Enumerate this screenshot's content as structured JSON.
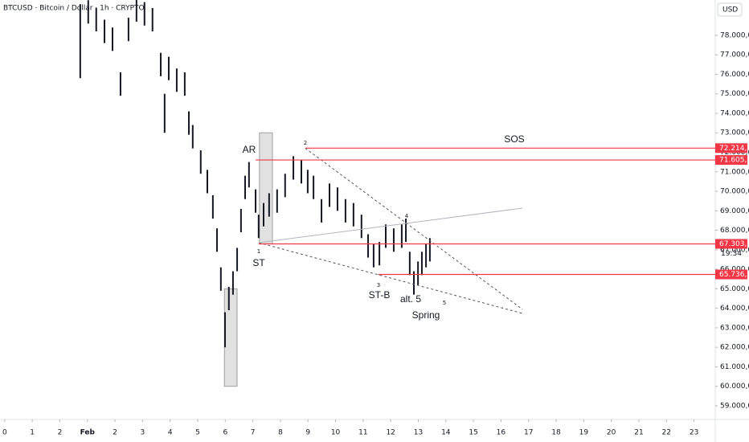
{
  "chart_data": {
    "type": "range-bar",
    "title": "BTCUSD · Bitcoin / Dollar · 1h · CRYPTO",
    "currency": "USD",
    "countdown": "19:34",
    "color": "#131722",
    "x": [
      2.74,
      3.03,
      3.32,
      3.62,
      3.91,
      4.2,
      4.49,
      4.78,
      5.07,
      5.36,
      5.66,
      5.8,
      5.95,
      6.24,
      6.53,
      6.68,
      6.82,
      7.11,
      7.35,
      7.55,
      7.7,
      7.84,
      7.99,
      8.13,
      8.28,
      8.43,
      8.57,
      8.72,
      8.86,
      9.1,
      9.21,
      9.39,
      9.59,
      9.88,
      10.17,
      10.47,
      10.76,
      10.99,
      11.2,
      11.49,
      11.78,
      12.07,
      12.36,
      12.65,
      12.94,
      13.18,
      13.38,
      13.59,
      13.82,
      14.11,
      14.4,
      14.55,
      14.69,
      14.84,
      14.99,
      15.13,
      15.28,
      15.42
    ],
    "series": [
      {
        "name": "High",
        "values": [
          79600,
          79800,
          79400,
          78800,
          78400,
          76100,
          78900,
          79900,
          79700,
          79400,
          77100,
          75000,
          76900,
          76300,
          76100,
          74100,
          73400,
          72100,
          71100,
          69800,
          68100,
          66100,
          63800,
          65100,
          65900,
          67100,
          69100,
          70800,
          71500,
          70100,
          68800,
          69400,
          69900,
          70100,
          70900,
          71800,
          71600,
          71100,
          70800,
          69600,
          70400,
          70200,
          69600,
          69400,
          68800,
          67800,
          67300,
          67400,
          68300,
          68100,
          68300,
          68600,
          66900,
          65900,
          66400,
          66900,
          67300,
          67600
        ]
      },
      {
        "name": "Low",
        "values": [
          75800,
          78600,
          78200,
          77600,
          77200,
          74900,
          77700,
          78700,
          78500,
          78200,
          75900,
          73000,
          75700,
          75100,
          74900,
          72900,
          72200,
          70900,
          69900,
          68600,
          66900,
          64900,
          62000,
          63900,
          64700,
          65900,
          67900,
          69600,
          70200,
          68900,
          67600,
          68200,
          68700,
          68900,
          69700,
          70600,
          70400,
          69900,
          69600,
          68400,
          69200,
          69000,
          68400,
          68200,
          67600,
          66600,
          66100,
          66200,
          67100,
          66900,
          67100,
          67400,
          65700,
          64700,
          65200,
          65700,
          66100,
          66400
        ]
      }
    ],
    "xlim": [
      -0.17,
      25.77
    ],
    "xticks": [
      0,
      1,
      2,
      {
        "value": 3,
        "label": "Feb"
      },
      {
        "value": 4,
        "label": "2"
      },
      {
        "value": 5,
        "label": "3"
      },
      {
        "value": 6,
        "label": "4"
      },
      {
        "value": 7,
        "label": "5"
      },
      {
        "value": 8,
        "label": "6"
      },
      {
        "value": 9,
        "label": "7"
      },
      {
        "value": 10,
        "label": "8"
      },
      {
        "value": 11,
        "label": "9"
      },
      {
        "value": 12,
        "label": "10"
      },
      {
        "value": 13,
        "label": "11"
      },
      {
        "value": 14,
        "label": "12"
      },
      {
        "value": 15,
        "label": "13"
      },
      {
        "value": 16,
        "label": "14"
      },
      {
        "value": 17,
        "label": "15"
      },
      {
        "value": 18,
        "label": "16"
      },
      {
        "value": 19,
        "label": "17"
      },
      {
        "value": 20,
        "label": "18"
      },
      {
        "value": 21,
        "label": "19"
      },
      {
        "value": 22,
        "label": "20"
      },
      {
        "value": 23,
        "label": "21"
      },
      {
        "value": 24,
        "label": "22"
      },
      {
        "value": 25,
        "label": "23"
      }
    ],
    "ylim": [
      58380,
      79810
    ],
    "yticks": [
      {
        "value": 59000,
        "label": "59.000,00"
      },
      {
        "value": 60000,
        "label": "60.000,00"
      },
      {
        "value": 61000,
        "label": "61.000,00"
      },
      {
        "value": 62000,
        "label": "62.000,00"
      },
      {
        "value": 63000,
        "label": "63.000,00"
      },
      {
        "value": 64000,
        "label": "64.000,00"
      },
      {
        "value": 65000,
        "label": "65.000,00"
      },
      {
        "value": 66000,
        "label": "66.000,00"
      },
      {
        "value": 67000,
        "label": "67.000,00"
      },
      {
        "value": 68000,
        "label": "68.000,00"
      },
      {
        "value": 69000,
        "label": "69.000,00"
      },
      {
        "value": 70000,
        "label": "70.000,00"
      },
      {
        "value": 71000,
        "label": "71.000,00"
      },
      {
        "value": 72000,
        "label": "72.000,00"
      },
      {
        "value": 73000,
        "label": "73.000,00"
      },
      {
        "value": 74000,
        "label": "74.000,00"
      },
      {
        "value": 75000,
        "label": "75.000,00"
      },
      {
        "value": 76000,
        "label": "76.000,00"
      },
      {
        "value": 77000,
        "label": "77.000,00"
      },
      {
        "value": 78000,
        "label": "78.000,00"
      }
    ],
    "levels": [
      {
        "value": 72214.13,
        "label": "72.214,13",
        "start": 10.9
      },
      {
        "value": 71605.84,
        "label": "71.605,84",
        "start": 9.1
      },
      {
        "value": 67303.16,
        "label": "67.303,16",
        "start": 9.21
      },
      {
        "value": 65736.22,
        "label": "65.736,22",
        "start": 13.55
      }
    ],
    "level_color": "#f23645",
    "boxes": [
      {
        "x": [
          7.97,
          8.43
        ],
        "y": [
          60000,
          65000
        ]
      },
      {
        "x": [
          9.24,
          9.71
        ],
        "y": [
          67300,
          73000
        ]
      }
    ],
    "trendlines": [
      {
        "x": [
          10.9,
          18.78
        ],
        "y": [
          72214,
          63944
        ],
        "dashed": true,
        "color": "#555555"
      },
      {
        "x": [
          9.21,
          18.78
        ],
        "y": [
          67365,
          63738
        ],
        "dashed": true,
        "color": "#555555"
      },
      {
        "x": [
          9.21,
          18.78
        ],
        "y": [
          67365,
          69138
        ],
        "dashed": false,
        "color": "#b2b5be"
      }
    ],
    "annotations": [
      "AR",
      "ST",
      "ST-B",
      "Spring",
      "SOS",
      "1",
      "2",
      "3",
      "4",
      "5",
      "alt. 5"
    ]
  }
}
